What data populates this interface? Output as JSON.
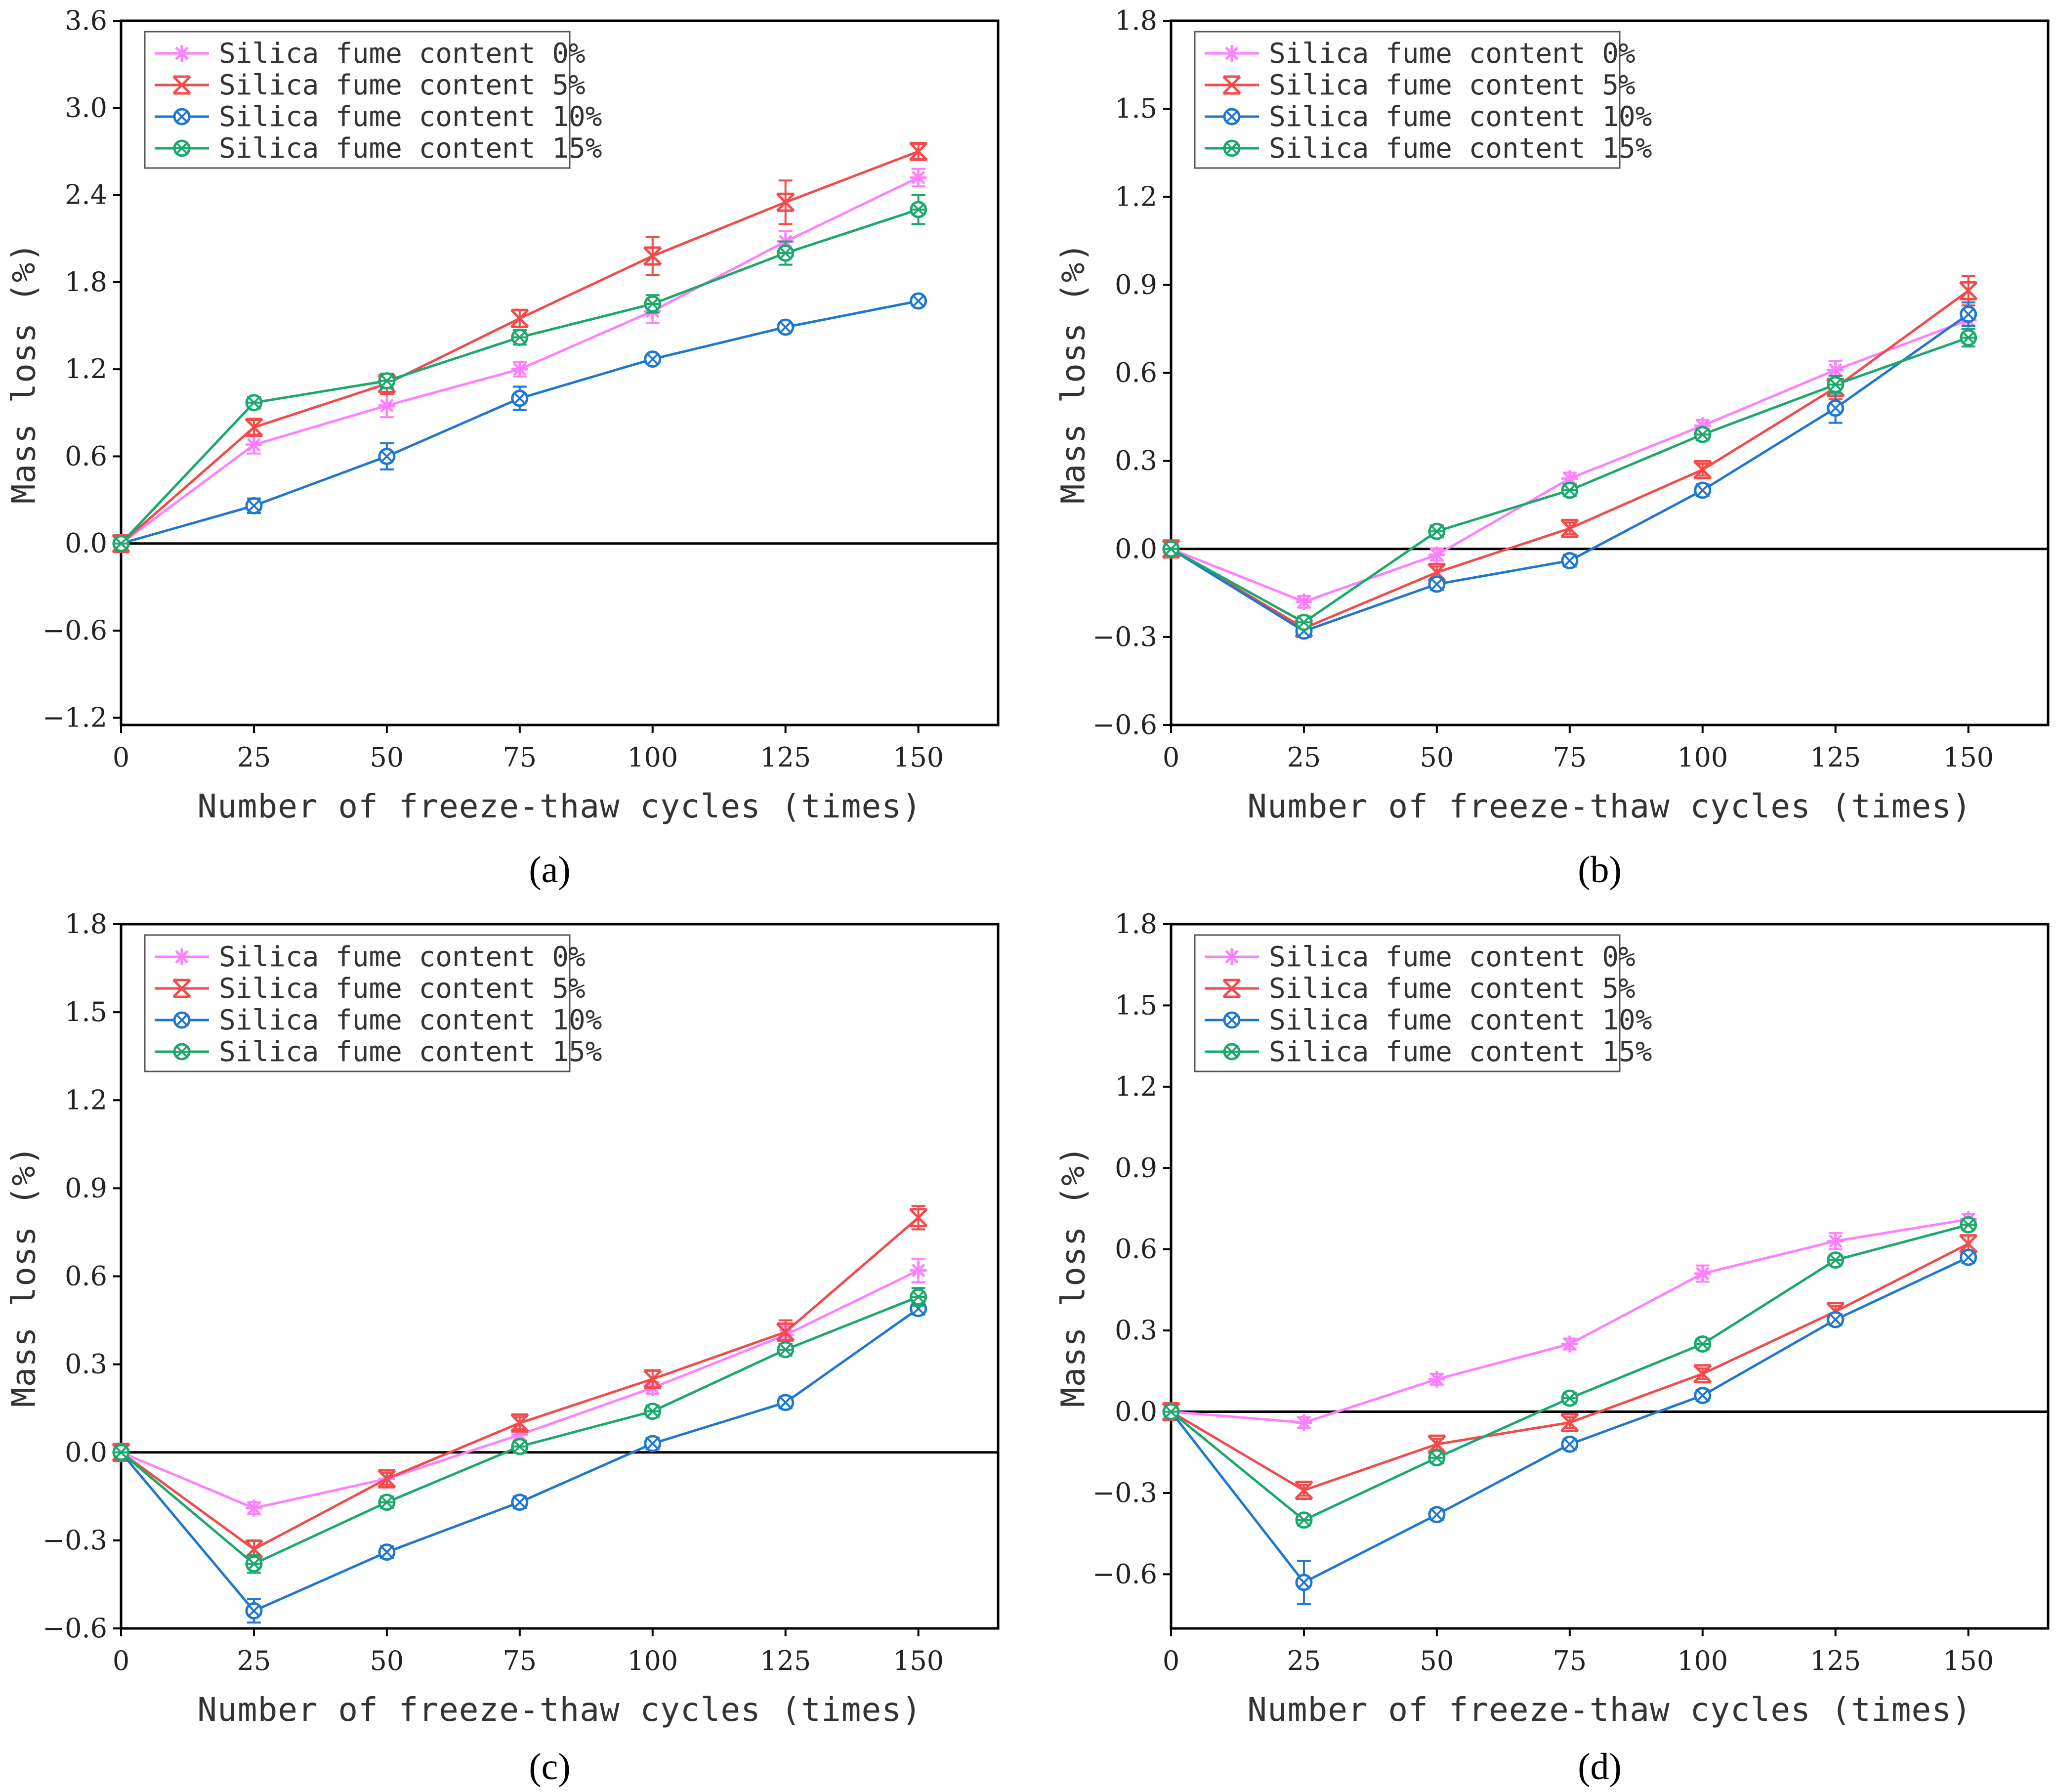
{
  "chart_data": [
    {
      "type": "line",
      "panel_label": "(a)",
      "xlabel": "Number of freeze-thaw cycles (times)",
      "ylabel": "Mass loss (%)",
      "x": [
        0,
        25,
        50,
        75,
        100,
        125,
        150
      ],
      "xlim": [
        0,
        165
      ],
      "ylim": [
        -1.25,
        3.6
      ],
      "yticks": [
        -1.2,
        -0.6,
        0.0,
        0.6,
        1.2,
        1.8,
        2.4,
        3.0,
        3.6
      ],
      "ytick_labels": [
        "−1.2",
        "−0.6",
        "0.0",
        "0.6",
        "1.2",
        "1.8",
        "2.4",
        "3.0",
        "3.6"
      ],
      "legend_position": "top-left",
      "series": [
        {
          "name": "Silica fume content 0%",
          "color": "#ff80ff",
          "marker": "asterisk",
          "values": [
            0,
            0.68,
            0.95,
            1.2,
            1.6,
            2.08,
            2.52
          ],
          "errors": [
            0,
            0.06,
            0.08,
            0.05,
            0.08,
            0.07,
            0.06
          ]
        },
        {
          "name": "Silica fume content 5%",
          "color": "#f24b4b",
          "marker": "x-triangle",
          "values": [
            0,
            0.8,
            1.1,
            1.55,
            1.98,
            2.35,
            2.7
          ],
          "errors": [
            0,
            0.05,
            0.07,
            0.06,
            0.13,
            0.15,
            0.05
          ]
        },
        {
          "name": "Silica fume content 10%",
          "color": "#1f77d0",
          "marker": "circle-x",
          "values": [
            0,
            0.26,
            0.6,
            1.0,
            1.27,
            1.49,
            1.67
          ],
          "errors": [
            0,
            0.05,
            0.09,
            0.08,
            0.03,
            0.03,
            0.03
          ]
        },
        {
          "name": "Silica fume content 15%",
          "color": "#1aa86b",
          "marker": "circle-star",
          "values": [
            0,
            0.97,
            1.12,
            1.42,
            1.65,
            2.0,
            2.3
          ],
          "errors": [
            0,
            0.04,
            0.05,
            0.05,
            0.06,
            0.08,
            0.1
          ]
        }
      ]
    },
    {
      "type": "line",
      "panel_label": "(b)",
      "xlabel": "Number of freeze-thaw cycles (times)",
      "ylabel": "Mass loss (%)",
      "x": [
        0,
        25,
        50,
        75,
        100,
        125,
        150
      ],
      "xlim": [
        0,
        165
      ],
      "ylim": [
        -0.6,
        1.8
      ],
      "yticks": [
        -0.6,
        -0.3,
        0.0,
        0.3,
        0.6,
        0.9,
        1.2,
        1.5,
        1.8
      ],
      "ytick_labels": [
        "−0.6",
        "−0.3",
        "0.0",
        "0.3",
        "0.6",
        "0.9",
        "1.2",
        "1.5",
        "1.8"
      ],
      "legend_position": "top-left",
      "series": [
        {
          "name": "Silica fume content 0%",
          "color": "#ff80ff",
          "marker": "asterisk",
          "values": [
            0,
            -0.18,
            -0.02,
            0.24,
            0.42,
            0.61,
            0.78
          ],
          "errors": [
            0,
            0.02,
            0.02,
            0.02,
            0.02,
            0.03,
            0.03
          ]
        },
        {
          "name": "Silica fume content 5%",
          "color": "#f24b4b",
          "marker": "x-triangle",
          "values": [
            0,
            -0.27,
            -0.08,
            0.07,
            0.27,
            0.55,
            0.88
          ],
          "errors": [
            0,
            0.02,
            0.02,
            0.02,
            0.02,
            0.04,
            0.05
          ]
        },
        {
          "name": "Silica fume content 10%",
          "color": "#1f77d0",
          "marker": "circle-x",
          "values": [
            0,
            -0.28,
            -0.12,
            -0.04,
            0.2,
            0.48,
            0.8
          ],
          "errors": [
            0,
            0.02,
            0.02,
            0.02,
            0.02,
            0.05,
            0.04
          ]
        },
        {
          "name": "Silica fume content 15%",
          "color": "#1aa86b",
          "marker": "circle-star",
          "values": [
            0,
            -0.25,
            0.06,
            0.2,
            0.39,
            0.56,
            0.72
          ],
          "errors": [
            0,
            0.02,
            0.02,
            0.02,
            0.02,
            0.03,
            0.03
          ]
        }
      ]
    },
    {
      "type": "line",
      "panel_label": "(c)",
      "xlabel": "Number of freeze-thaw cycles (times)",
      "ylabel": "Mass loss (%)",
      "x": [
        0,
        25,
        50,
        75,
        100,
        125,
        150
      ],
      "xlim": [
        0,
        165
      ],
      "ylim": [
        -0.6,
        1.8
      ],
      "yticks": [
        -0.6,
        -0.3,
        0.0,
        0.3,
        0.6,
        0.9,
        1.2,
        1.5,
        1.8
      ],
      "ytick_labels": [
        "−0.6",
        "−0.3",
        "0.0",
        "0.3",
        "0.6",
        "0.9",
        "1.2",
        "1.5",
        "1.8"
      ],
      "legend_position": "top-left",
      "series": [
        {
          "name": "Silica fume content 0%",
          "color": "#ff80ff",
          "marker": "asterisk",
          "values": [
            0,
            -0.19,
            -0.09,
            0.06,
            0.22,
            0.4,
            0.62
          ],
          "errors": [
            0,
            0.02,
            0.02,
            0.02,
            0.02,
            0.03,
            0.04
          ]
        },
        {
          "name": "Silica fume content 5%",
          "color": "#f24b4b",
          "marker": "x-triangle",
          "values": [
            0,
            -0.33,
            -0.09,
            0.1,
            0.25,
            0.41,
            0.8
          ],
          "errors": [
            0,
            0.03,
            0.02,
            0.02,
            0.03,
            0.04,
            0.04
          ]
        },
        {
          "name": "Silica fume content 10%",
          "color": "#1f77d0",
          "marker": "circle-x",
          "values": [
            0,
            -0.54,
            -0.34,
            -0.17,
            0.03,
            0.17,
            0.49
          ],
          "errors": [
            0,
            0.04,
            0.02,
            0.02,
            0.02,
            0.02,
            0.02
          ]
        },
        {
          "name": "Silica fume content 15%",
          "color": "#1aa86b",
          "marker": "circle-star",
          "values": [
            0,
            -0.38,
            -0.17,
            0.02,
            0.14,
            0.35,
            0.53
          ],
          "errors": [
            0,
            0.03,
            0.02,
            0.02,
            0.02,
            0.02,
            0.03
          ]
        }
      ]
    },
    {
      "type": "line",
      "panel_label": "(d)",
      "xlabel": "Number of freeze-thaw cycles (times)",
      "ylabel": "Mass loss (%)",
      "x": [
        0,
        25,
        50,
        75,
        100,
        125,
        150
      ],
      "xlim": [
        0,
        165
      ],
      "ylim": [
        -0.8,
        1.8
      ],
      "yticks": [
        -0.6,
        -0.3,
        0.0,
        0.3,
        0.6,
        0.9,
        1.2,
        1.5,
        1.8
      ],
      "ytick_labels": [
        "−0.6",
        "−0.3",
        "0.0",
        "0.3",
        "0.6",
        "0.9",
        "1.2",
        "1.5",
        "1.8"
      ],
      "legend_position": "top-left",
      "series": [
        {
          "name": "Silica fume content 0%",
          "color": "#ff80ff",
          "marker": "asterisk",
          "values": [
            0,
            -0.04,
            0.12,
            0.25,
            0.51,
            0.63,
            0.71
          ],
          "errors": [
            0,
            0.02,
            0.02,
            0.02,
            0.03,
            0.03,
            0.02
          ]
        },
        {
          "name": "Silica fume content 5%",
          "color": "#f24b4b",
          "marker": "x-triangle",
          "values": [
            0,
            -0.29,
            -0.12,
            -0.04,
            0.14,
            0.37,
            0.62
          ],
          "errors": [
            0,
            0.02,
            0.02,
            0.02,
            0.02,
            0.02,
            0.03
          ]
        },
        {
          "name": "Silica fume content 10%",
          "color": "#1f77d0",
          "marker": "circle-x",
          "values": [
            0,
            -0.63,
            -0.38,
            -0.12,
            0.06,
            0.34,
            0.57
          ],
          "errors": [
            0,
            0.08,
            0.02,
            0.02,
            0.02,
            0.02,
            0.02
          ]
        },
        {
          "name": "Silica fume content 15%",
          "color": "#1aa86b",
          "marker": "circle-star",
          "values": [
            0,
            -0.4,
            -0.17,
            0.05,
            0.25,
            0.56,
            0.69
          ],
          "errors": [
            0,
            0.02,
            0.02,
            0.02,
            0.02,
            0.02,
            0.02
          ]
        }
      ]
    }
  ]
}
